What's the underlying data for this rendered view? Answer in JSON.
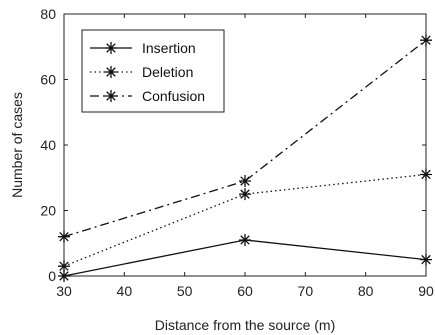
{
  "chart_data": {
    "type": "line",
    "title": "",
    "xlabel": "Distance from the source (m)",
    "ylabel": "Number of cases",
    "x": [
      30,
      60,
      90
    ],
    "xlim": [
      30,
      90
    ],
    "ylim": [
      0,
      80
    ],
    "xticks": [
      30,
      40,
      50,
      60,
      70,
      80,
      90
    ],
    "yticks": [
      0,
      20,
      40,
      60,
      80
    ],
    "grid": false,
    "legend_position": "top-left",
    "marker": "asterisk",
    "colors": {
      "line": "#111111",
      "axes": "#222222",
      "background": "#ffffff"
    },
    "series": [
      {
        "name": "Insertion",
        "values": [
          0,
          11,
          5
        ],
        "linestyle": "solid"
      },
      {
        "name": "Deletion",
        "values": [
          3,
          25,
          31
        ],
        "linestyle": "dotted"
      },
      {
        "name": "Confusion",
        "values": [
          12,
          29,
          72
        ],
        "linestyle": "dashdot"
      }
    ]
  }
}
